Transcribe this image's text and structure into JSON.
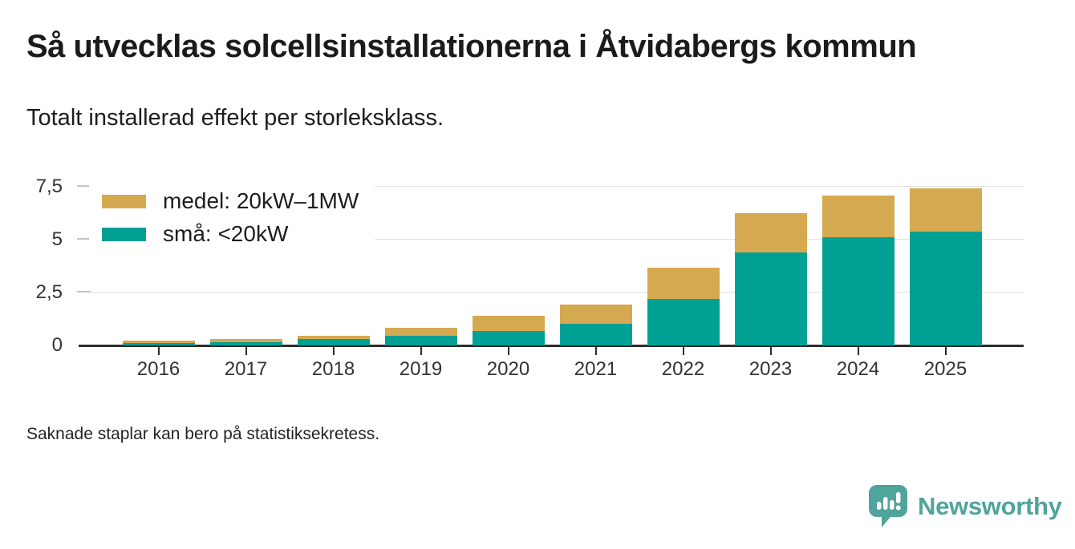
{
  "header": {
    "title": "Så utvecklas solcellsinstallationerna i Åtvidabergs kommun",
    "subtitle": "Totalt installerad effekt per storleksklass."
  },
  "footer": {
    "note": "Saknade staplar kan bero på statistiksekretess."
  },
  "branding": {
    "name": "Newsworthy",
    "color": "#4FA49B",
    "icon": "speech-bubble-bar-chart-icon"
  },
  "chart_data": {
    "type": "bar",
    "stacked": true,
    "title": "Så utvecklas solcellsinstallationerna i Åtvidabergs kommun",
    "subtitle": "Totalt installerad effekt per storleksklass.",
    "categories": [
      "2016",
      "2017",
      "2018",
      "2019",
      "2020",
      "2021",
      "2022",
      "2023",
      "2024",
      "2025"
    ],
    "series": [
      {
        "name": "medel: 20kW–1MW",
        "color": "#D5A94F",
        "values": [
          0.1,
          0.12,
          0.15,
          0.36,
          0.71,
          0.9,
          1.5,
          1.86,
          1.97,
          2.05
        ]
      },
      {
        "name": "små: <20kW",
        "color": "#00A095",
        "values": [
          0.13,
          0.17,
          0.29,
          0.46,
          0.69,
          1.02,
          2.18,
          4.41,
          5.1,
          5.37
        ]
      }
    ],
    "stack_order_bottom_to_top": [
      "små: <20kW",
      "medel: 20kW–1MW"
    ],
    "totals": [
      0.23,
      0.29,
      0.44,
      0.82,
      1.4,
      1.92,
      3.68,
      6.27,
      7.07,
      7.42
    ],
    "ylim": [
      0,
      7.5
    ],
    "yticks": [
      {
        "value": 0,
        "label": "0"
      },
      {
        "value": 2.5,
        "label": "2,5"
      },
      {
        "value": 5,
        "label": "5"
      },
      {
        "value": 7.5,
        "label": "7,5"
      }
    ],
    "xlabel": "",
    "ylabel": "",
    "grid": "horizontal",
    "legend_position": "top-left",
    "colors": {
      "axis": "#2d2d2d",
      "gridline": "#e0e0e0",
      "tick_dash": "#c4c4c4",
      "axis_text": "#333333"
    }
  }
}
